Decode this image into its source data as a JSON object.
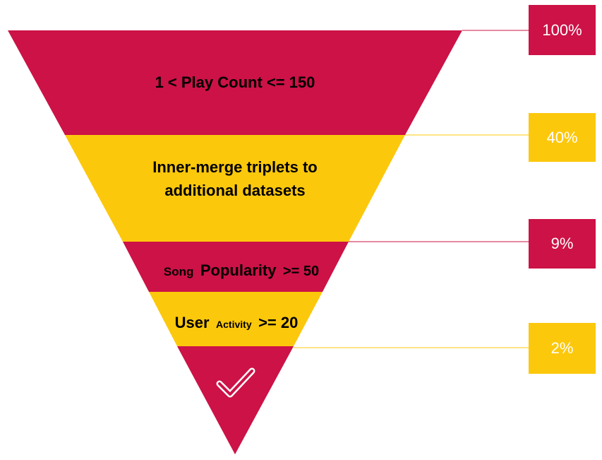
{
  "colors": {
    "crimson": "#cc1246",
    "gold": "#fcc80c",
    "text": "#000000",
    "box_text": "#ffffff"
  },
  "stages": [
    {
      "label": "1 < Play Count <= 150",
      "color": "crimson"
    },
    {
      "label_line1": "Inner-merge triplets to",
      "label_line2": "additional datasets",
      "color": "gold"
    },
    {
      "label_small": "Song",
      "label_main": "Popularity",
      "label_end": ">= 50",
      "color": "crimson"
    },
    {
      "label_main": "User",
      "label_small": "Activity",
      "label_end": ">= 20",
      "color": "gold"
    },
    {
      "icon": "checkmark-icon",
      "color": "crimson"
    }
  ],
  "percentages": [
    {
      "value": "100%",
      "color": "crimson"
    },
    {
      "value": "40%",
      "color": "gold"
    },
    {
      "value": "9%",
      "color": "crimson"
    },
    {
      "value": "2%",
      "color": "gold"
    }
  ]
}
